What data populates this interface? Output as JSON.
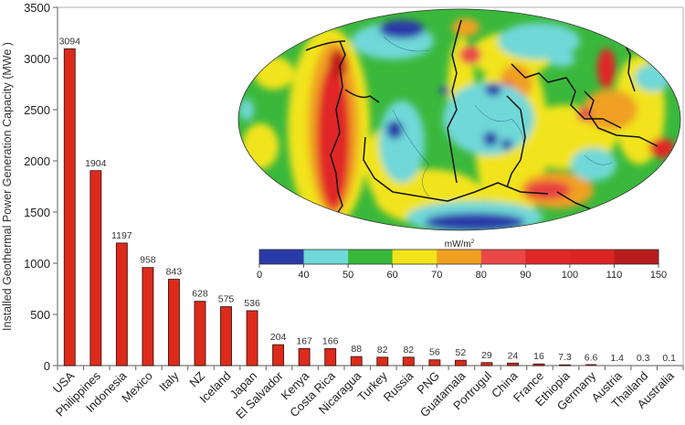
{
  "chart_data": {
    "type": "bar",
    "title": "",
    "xlabel": "",
    "ylabel": "Installed Geothermal Power Generation Capacity (MWe )",
    "ylim": [
      0,
      3500
    ],
    "yticks": [
      0,
      500,
      1000,
      1500,
      2000,
      2500,
      3000,
      3500
    ],
    "grid": false,
    "categories": [
      "USA",
      "Philippines",
      "Indonesia",
      "Mexico",
      "Italy",
      "NZ",
      "Iceland",
      "Japan",
      "El Salvador",
      "Kenya",
      "Costa Rica",
      "Nicaragua",
      "Turkey",
      "Russia",
      "PNG",
      "Guatamala",
      "Portrugul",
      "China",
      "France",
      "Ethiopia",
      "Germany",
      "Austria",
      "Thailand",
      "Australia"
    ],
    "values": [
      3094,
      1904,
      1197,
      958,
      843,
      628,
      575,
      536,
      204,
      167,
      166,
      88,
      82,
      82,
      56,
      52,
      29,
      24,
      16,
      7.3,
      6.6,
      1.4,
      0.3,
      0.1
    ],
    "value_labels": [
      "3094",
      "1904",
      "1197",
      "958",
      "843",
      "628",
      "575",
      "536",
      "204",
      "167",
      "166",
      "88",
      "82",
      "82",
      "56",
      "52",
      "29",
      "24",
      "16",
      "7.3",
      "6.6",
      "1.4",
      "0.3",
      "0.1"
    ],
    "bar_color": "#dd2a1b",
    "inset": {
      "type": "heatmap",
      "description": "Global heat flow map (Mollweide projection) with plate boundaries",
      "colorbar": {
        "unit": "mW/m²",
        "unit_base": "mW/m",
        "unit_sup": "2",
        "ticks": [
          "0",
          "40",
          "50",
          "60",
          "70",
          "80",
          "90",
          "100",
          "110",
          "150"
        ],
        "colors": [
          "#2a3aa8",
          "#6fd8d8",
          "#38b83a",
          "#f2e41a",
          "#f0a020",
          "#ea4848",
          "#e02828",
          "#dc2424",
          "#b81c1c"
        ]
      }
    }
  }
}
